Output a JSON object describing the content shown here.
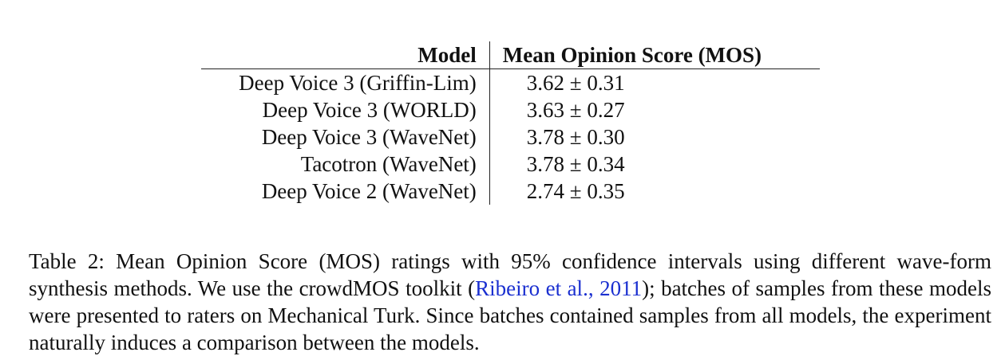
{
  "table": {
    "headers": {
      "model": "Model",
      "mos": "Mean Opinion Score (MOS)"
    },
    "rows": [
      {
        "model": "Deep Voice 3 (Griffin-Lim)",
        "mos": "3.62 ± 0.31"
      },
      {
        "model": "Deep Voice 3 (WORLD)",
        "mos": "3.63 ± 0.27"
      },
      {
        "model": "Deep Voice 3 (WaveNet)",
        "mos": "3.78 ± 0.30"
      },
      {
        "model": "Tacotron (WaveNet)",
        "mos": "3.78 ± 0.34"
      },
      {
        "model": "Deep Voice 2 (WaveNet)",
        "mos": "2.74 ± 0.35"
      }
    ]
  },
  "caption": {
    "part1": "Table 2: Mean Opinion Score (MOS) ratings with 95% confidence intervals using different wave-form synthesis methods. We use the crowdMOS toolkit (",
    "citation": "Ribeiro et al., 2011",
    "part2": "); batches of samples from these models were presented to raters on Mechanical Turk. Since batches contained samples from all models, the experiment naturally induces a comparison between the models."
  },
  "colors": {
    "text": "#111111",
    "citation_link": "#1a2fd0"
  }
}
